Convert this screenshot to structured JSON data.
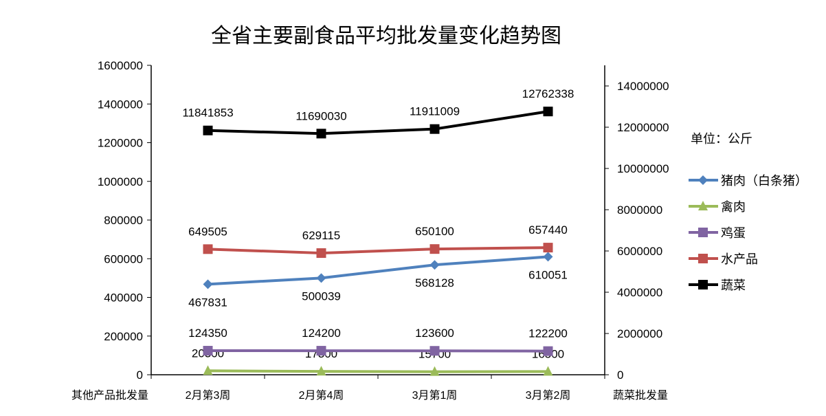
{
  "chart_data": {
    "type": "line",
    "title": "全省主要副食品平均批发量变化趋势图",
    "unit_note": "单位：公斤",
    "categories": [
      "2月第3周",
      "2月第4周",
      "3月第1周",
      "3月第2周"
    ],
    "ylabel": "其他产品批发量",
    "y2label": "蔬菜批发量",
    "ylim": [
      0,
      1600000
    ],
    "yticks": [
      0,
      200000,
      400000,
      600000,
      800000,
      1000000,
      1200000,
      1400000,
      1600000
    ],
    "y2lim": [
      0,
      15000000
    ],
    "y2ticks": [
      0,
      2000000,
      4000000,
      6000000,
      8000000,
      10000000,
      12000000,
      14000000
    ],
    "legend_position": "right",
    "series": [
      {
        "name": "猪肉（白条猪）",
        "axis": "left",
        "color": "#4F81BD",
        "marker": "diamond",
        "label_pos": "below",
        "values": [
          467831,
          500039,
          568128,
          610051
        ]
      },
      {
        "name": "禽肉",
        "axis": "left",
        "color": "#9BBB59",
        "marker": "triangle",
        "label_pos": "above",
        "values": [
          20300,
          17300,
          15700,
          16500
        ]
      },
      {
        "name": "鸡蛋",
        "axis": "left",
        "color": "#8064A2",
        "marker": "square",
        "label_pos": "above",
        "values": [
          124350,
          124200,
          123600,
          122200
        ]
      },
      {
        "name": "水产品",
        "axis": "left",
        "color": "#C0504D",
        "marker": "square",
        "label_pos": "above",
        "values": [
          649505,
          629115,
          650100,
          657440
        ]
      },
      {
        "name": "蔬菜",
        "axis": "right",
        "color": "#000000",
        "marker": "square",
        "label_pos": "above",
        "values": [
          11841853,
          11690030,
          11911009,
          12762338
        ]
      }
    ]
  }
}
